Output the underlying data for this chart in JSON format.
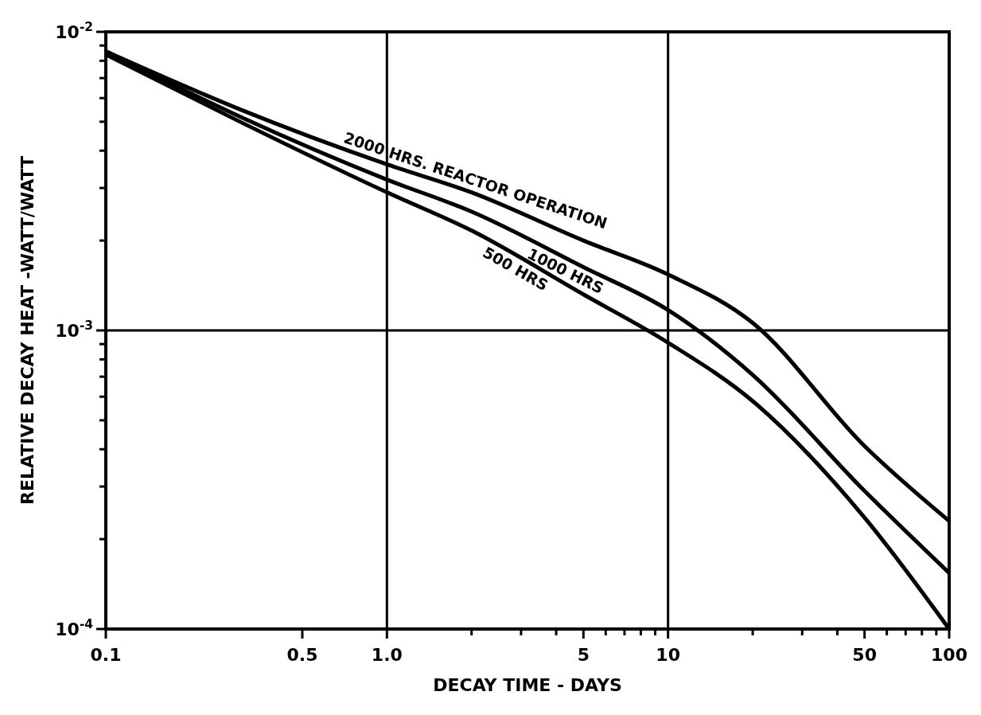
{
  "chart_data": {
    "type": "line",
    "xlabel": "DECAY TIME - DAYS",
    "ylabel": "RELATIVE DECAY HEAT -WATT/WATT",
    "log": "xy",
    "grid": true,
    "marker": "none",
    "line_style": "solid",
    "xlim": [
      0.1,
      100
    ],
    "ylim": [
      0.0001,
      0.01
    ],
    "xticks": [
      {
        "value": 0.1,
        "label": "0.1"
      },
      {
        "value": 0.5,
        "label": "0.5"
      },
      {
        "value": 1,
        "label": "1.0"
      },
      {
        "value": 2,
        "label": null
      },
      {
        "value": 3,
        "label": null
      },
      {
        "value": 4,
        "label": null
      },
      {
        "value": 5,
        "label": "5"
      },
      {
        "value": 6,
        "label": null
      },
      {
        "value": 7,
        "label": null
      },
      {
        "value": 8,
        "label": null
      },
      {
        "value": 9,
        "label": null
      },
      {
        "value": 10,
        "label": "10"
      },
      {
        "value": 20,
        "label": null
      },
      {
        "value": 30,
        "label": null
      },
      {
        "value": 40,
        "label": null
      },
      {
        "value": 50,
        "label": "50"
      },
      {
        "value": 60,
        "label": null
      },
      {
        "value": 70,
        "label": null
      },
      {
        "value": 80,
        "label": null
      },
      {
        "value": 90,
        "label": null
      },
      {
        "value": 100,
        "label": "100"
      }
    ],
    "yticks": [
      {
        "value": 0.0001,
        "label": "10$^{-4}$"
      },
      {
        "value": 0.0002,
        "label": null
      },
      {
        "value": 0.0003,
        "label": null
      },
      {
        "value": 0.0004,
        "label": null
      },
      {
        "value": 0.0005,
        "label": null
      },
      {
        "value": 0.0006,
        "label": null
      },
      {
        "value": 0.0007,
        "label": null
      },
      {
        "value": 0.0008,
        "label": null
      },
      {
        "value": 0.0009,
        "label": null
      },
      {
        "value": 0.001,
        "label": "10$^{-3}$"
      },
      {
        "value": 0.002,
        "label": null
      },
      {
        "value": 0.003,
        "label": null
      },
      {
        "value": 0.004,
        "label": null
      },
      {
        "value": 0.005,
        "label": null
      },
      {
        "value": 0.006,
        "label": null
      },
      {
        "value": 0.007,
        "label": null
      },
      {
        "value": 0.008,
        "label": null
      },
      {
        "value": 0.009,
        "label": null
      },
      {
        "value": 0.01,
        "label": "10$^{-2}$"
      }
    ],
    "x": [
      0.1,
      0.3,
      1,
      2,
      5,
      10,
      20,
      50,
      100
    ],
    "series": [
      {
        "name": "2000 HRS. REACTOR OPERATION",
        "color": "#000000",
        "values": [
          0.0086,
          0.0055,
          0.0036,
          0.0029,
          0.002,
          0.00154,
          0.00106,
          0.00041,
          0.00023
        ]
      },
      {
        "name": "1000 HRS",
        "color": "#000000",
        "values": [
          0.0086,
          0.0052,
          0.0032,
          0.0025,
          0.00163,
          0.00117,
          0.00071,
          0.00029,
          0.000154
        ]
      },
      {
        "name": "500 HRS",
        "color": "#000000",
        "values": [
          0.0084,
          0.005,
          0.0029,
          0.00216,
          0.00132,
          0.00091,
          0.00058,
          0.000236,
          0.0001
        ]
      }
    ]
  }
}
